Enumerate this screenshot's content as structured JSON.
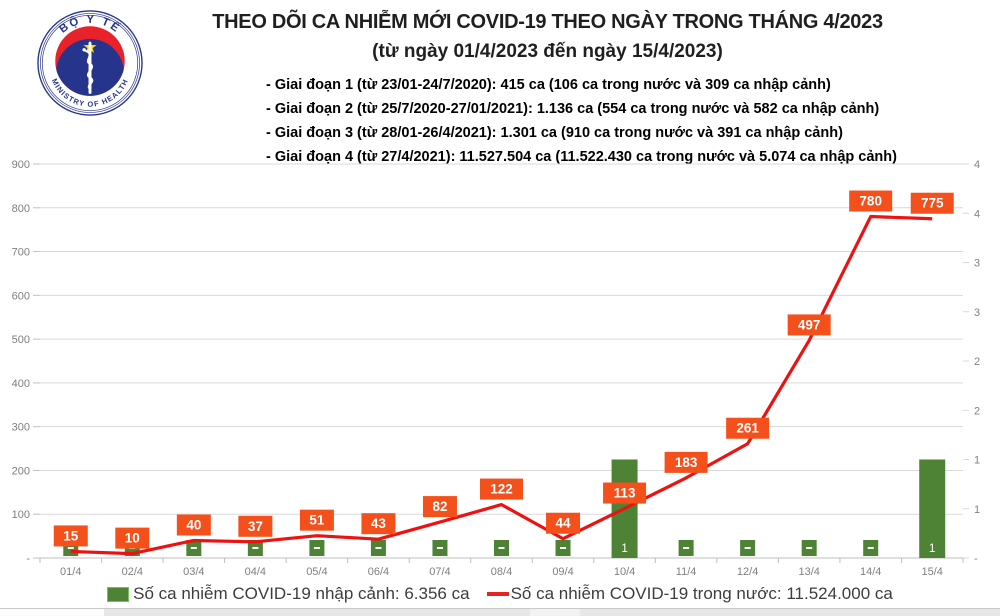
{
  "header": {
    "title": "THEO DÕI CA NHIỄM MỚI COVID-19 THEO NGÀY TRONG THÁNG 4/2023",
    "subtitle": "(từ ngày 01/4/2023 đến ngày 15/4/2023)",
    "phases": [
      "- Giai đoạn 1 (từ 23/01-24/7/2020): 415 ca (106 ca trong nước và 309 ca nhập cảnh)",
      "- Giai đoạn 2 (từ 25/7/2020-27/01/2021): 1.136 ca (554 ca trong nước và 582 ca nhập cảnh)",
      "- Giai đoạn 3 (từ 28/01-26/4/2021): 1.301 ca (910 ca trong nước và 391 ca nhập cảnh)",
      "- Giai đoạn 4 (từ 27/4/2021): 11.527.504 ca (11.522.430 ca trong nước và 5.074 ca nhập cảnh)"
    ]
  },
  "logo": {
    "top_text": "BỘ Y TẾ",
    "bottom_text": "MINISTRY OF HEALTH",
    "ring_color": "#27348B",
    "flag_red": "#E8222A",
    "star_yellow": "#FFDE00"
  },
  "chart_data": {
    "type": "combo",
    "categories": [
      "01/4",
      "02/4",
      "03/4",
      "04/4",
      "05/4",
      "06/4",
      "07/4",
      "08/4",
      "09/4",
      "10/4",
      "11/4",
      "12/4",
      "13/4",
      "14/4",
      "15/4"
    ],
    "series": [
      {
        "name": "Số ca nhiễm COVID-19 nhập cảnh",
        "chart_type": "bar",
        "axis": "right",
        "color": "#4E8234",
        "values": [
          0,
          0,
          0,
          0,
          0,
          0,
          0,
          0,
          0,
          1,
          0,
          0,
          0,
          0,
          1
        ],
        "data_labels": [
          "-",
          "-",
          "-",
          "-",
          "-",
          "-",
          "-",
          "-",
          "-",
          "1",
          "-",
          "-",
          "-",
          "-",
          "1"
        ]
      },
      {
        "name": "Số ca nhiễm COVID-19 trong nước",
        "chart_type": "line",
        "axis": "left",
        "color": "#EE1111",
        "label_bg": "#F4501C",
        "values": [
          15,
          10,
          40,
          37,
          51,
          43,
          82,
          122,
          44,
          113,
          183,
          261,
          497,
          780,
          775
        ],
        "data_labels": [
          "15",
          "10",
          "40",
          "37",
          "51",
          "43",
          "82",
          "122",
          "44",
          "113",
          "183",
          "261",
          "497",
          "780",
          "775"
        ]
      }
    ],
    "left_axis": {
      "min": 0,
      "max": 900,
      "step": 100,
      "tick_labels": [
        "900",
        "800",
        "700",
        "600",
        "500",
        "400",
        "300",
        "200",
        "100",
        "-"
      ]
    },
    "right_axis": {
      "min": 0,
      "max": 4,
      "step": 0.5,
      "tick_labels": [
        "4",
        "4",
        "3",
        "3",
        "2",
        "2",
        "1",
        "1",
        "-"
      ]
    },
    "grid": true,
    "gridline_color": "#D9D9D9",
    "axis_text_color": "#7F7F7F",
    "legend_position": "bottom"
  },
  "legend": {
    "items": [
      {
        "label": "Số ca nhiễm COVID-19 nhập cảnh: 6.356 ca",
        "color": "#4E8234",
        "border": "#7CBE5A"
      },
      {
        "label": "Số ca nhiễm COVID-19 trong nước: 11.524.000 ca",
        "color": "#E82222"
      }
    ]
  }
}
